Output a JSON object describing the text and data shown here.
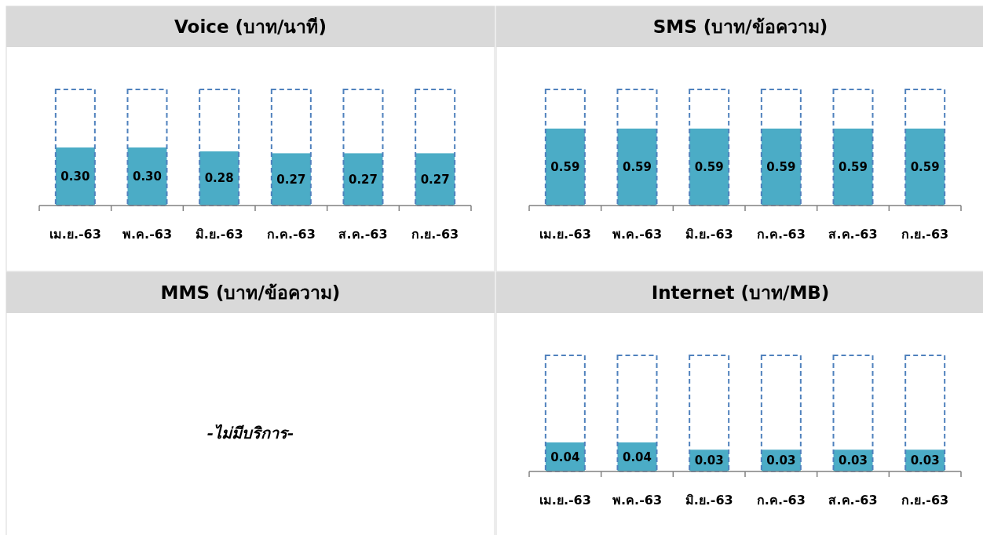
{
  "chart_data": [
    {
      "type": "bar",
      "title": "Voice (บาท/นาที)",
      "categories": [
        "เม.ย.-63",
        "พ.ค.-63",
        "มิ.ย.-63",
        "ก.ค.-63",
        "ส.ค.-63",
        "ก.ย.-63"
      ],
      "series": [
        {
          "color": "#4bacc6",
          "values": [
            0.3,
            0.3,
            0.28,
            0.27,
            0.27,
            0.27
          ],
          "value_labels": [
            "0.30",
            "0.30",
            "0.28",
            "0.27",
            "0.27",
            "0.27"
          ]
        },
        {
          "color": "#4f81bd",
          "values": [
            0.6,
            0.6,
            0.6,
            0.6,
            0.6,
            0.6
          ],
          "line_style": "dashed"
        }
      ]
    },
    {
      "type": "bar",
      "title": "SMS (บาท/ข้อความ)",
      "categories": [
        "เม.ย.-63",
        "พ.ค.-63",
        "มิ.ย.-63",
        "ก.ค.-63",
        "ส.ค.-63",
        "ก.ย.-63"
      ],
      "series": [
        {
          "color": "#4bacc6",
          "values": [
            0.59,
            0.59,
            0.59,
            0.59,
            0.59,
            0.59
          ],
          "value_labels": [
            "0.59",
            "0.59",
            "0.59",
            "0.59",
            "0.59",
            "0.59"
          ]
        },
        {
          "color": "#4f81bd",
          "values": [
            0.89,
            0.89,
            0.89,
            0.89,
            0.89,
            0.89
          ],
          "line_style": "dashed"
        }
      ]
    },
    {
      "type": "other",
      "title": "MMS (บาท/ข้อความ)",
      "annotations": [
        "-ไม่มีบริการ-"
      ]
    },
    {
      "type": "bar",
      "title": "Internet (บาท/MB)",
      "categories": [
        "เม.ย.-63",
        "พ.ค.-63",
        "มิ.ย.-63",
        "ก.ค.-63",
        "ส.ค.-63",
        "ก.ย.-63"
      ],
      "series": [
        {
          "color": "#4bacc6",
          "values": [
            0.04,
            0.04,
            0.03,
            0.03,
            0.03,
            0.03
          ],
          "value_labels": [
            "0.04",
            "0.04",
            "0.03",
            "0.03",
            "0.03",
            "0.03"
          ]
        },
        {
          "color": "#4f81bd",
          "values": [
            0.16,
            0.16,
            0.16,
            0.16,
            0.16,
            0.16
          ],
          "line_style": "dashed"
        }
      ]
    }
  ]
}
